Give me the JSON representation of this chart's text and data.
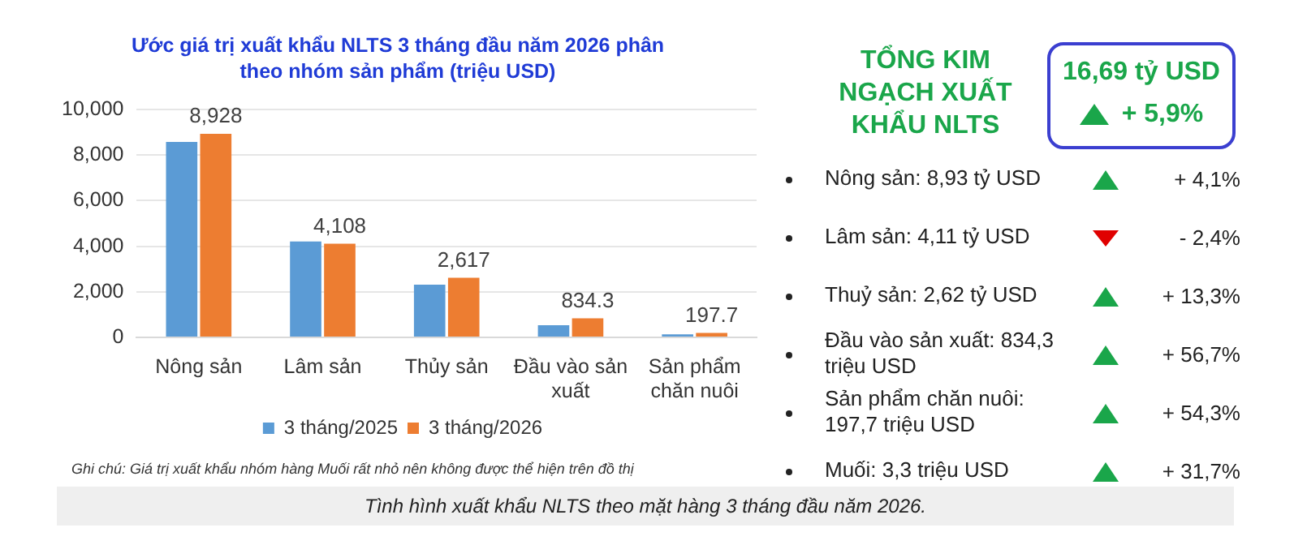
{
  "chart_data": [
    {
      "type": "bar",
      "title": "Ước giá trị xuất khẩu NLTS 3 tháng đầu năm 2026 phân theo nhóm sản phẩm (triệu USD)",
      "categories": [
        "Nông sản",
        "Lâm sản",
        "Thủy sản",
        "Đầu vào sản xuất",
        "Sản phẩm chăn nuôi"
      ],
      "series": [
        {
          "name": "3 tháng/2025",
          "color": "#5b9bd5",
          "values": [
            8580,
            4210,
            2310,
            530,
            130
          ]
        },
        {
          "name": "3 tháng/2026",
          "color": "#ed7d31",
          "values": [
            8928,
            4108,
            2617,
            834.3,
            197.7
          ],
          "value_labels": [
            "8,928",
            "4,108",
            "2,617",
            "834.3",
            "197.7"
          ]
        }
      ],
      "ylim": [
        0,
        10000
      ],
      "yticks": [
        {
          "value": 0,
          "label": "0"
        },
        {
          "value": 2000,
          "label": "2,000"
        },
        {
          "value": 4000,
          "label": "4,000"
        },
        {
          "value": 6000,
          "label": "6,000"
        },
        {
          "value": 8000,
          "label": "8,000"
        },
        {
          "value": 10000,
          "label": "10,000"
        }
      ],
      "grid": "y",
      "legend": "bottom",
      "annotations": [
        "Ghi chú: Giá trị xuất khẩu nhóm hàng Muối rất nhỏ nên không được thể hiện trên đồ thị",
        "Tình hình xuất khẩu NLTS theo mặt hàng 3 tháng đầu năm 2026."
      ]
    },
    {
      "type": "other",
      "title": "TỔNG KIM NGẠCH XUẤT KHẨU NLTS",
      "annotations": [
        "16,69 tỷ USD",
        "+ 5,9%"
      ],
      "categories": [
        "Nông sản: 8,93 tỷ USD",
        "Lâm sản: 4,11 tỷ USD",
        "Thuỷ sản: 2,62 tỷ USD",
        "Đầu vào sản xuất: 834,3 triệu USD",
        "Sản phẩm chăn nuôi: 197,7 triệu USD",
        "Muối:  3,3 triệu USD"
      ],
      "value_labels": [
        "+ 4,1%",
        "- 2,4%",
        "+ 13,3%",
        "+ 56,7%",
        "+ 54,3%",
        "+ 31,7%"
      ],
      "colors": [
        "#1aa64a",
        "#e00000",
        "#1aa64a",
        "#1aa64a",
        "#1aa64a",
        "#1aa64a"
      ]
    }
  ]
}
